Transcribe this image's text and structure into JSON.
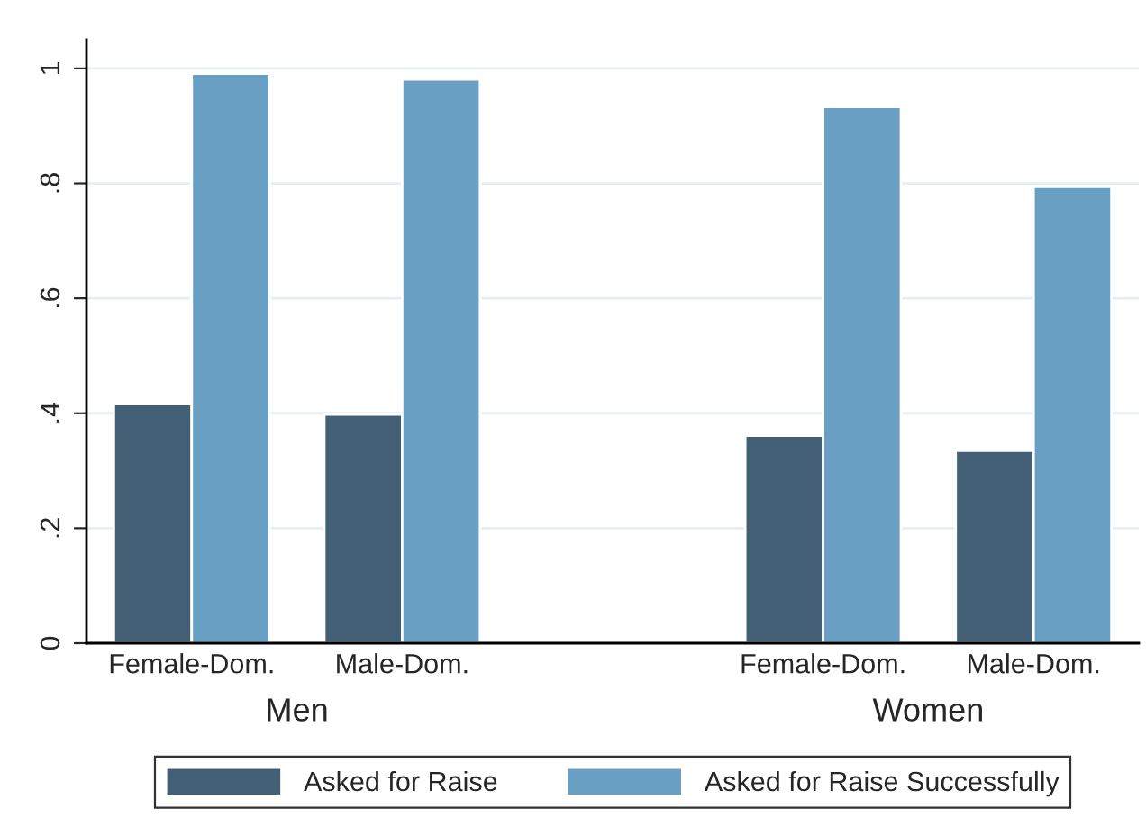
{
  "chart_data": {
    "type": "bar",
    "categories": [
      "Female-Dom.",
      "Male-Dom.",
      null,
      "Female-Dom.",
      "Male-Dom."
    ],
    "series": [
      {
        "name": "Asked for Raise",
        "color": "#435f75",
        "values": [
          0.416,
          0.398,
          null,
          0.361,
          0.335
        ]
      },
      {
        "name": "Asked for Raise Successfully",
        "color": "#6a9fc4",
        "values": [
          0.991,
          0.981,
          null,
          0.933,
          0.794
        ]
      }
    ],
    "annotations": [
      "Men",
      "Women"
    ],
    "ylim": [
      0,
      1.05
    ],
    "yticks": [
      0,
      {
        "value": 0.2,
        "label": ".2"
      },
      {
        "value": 0.4,
        "label": ".4"
      },
      {
        "value": 0.6,
        "label": ".6"
      },
      {
        "value": 0.8,
        "label": ".8"
      },
      1
    ],
    "grid": "y",
    "legend": "bottom"
  }
}
